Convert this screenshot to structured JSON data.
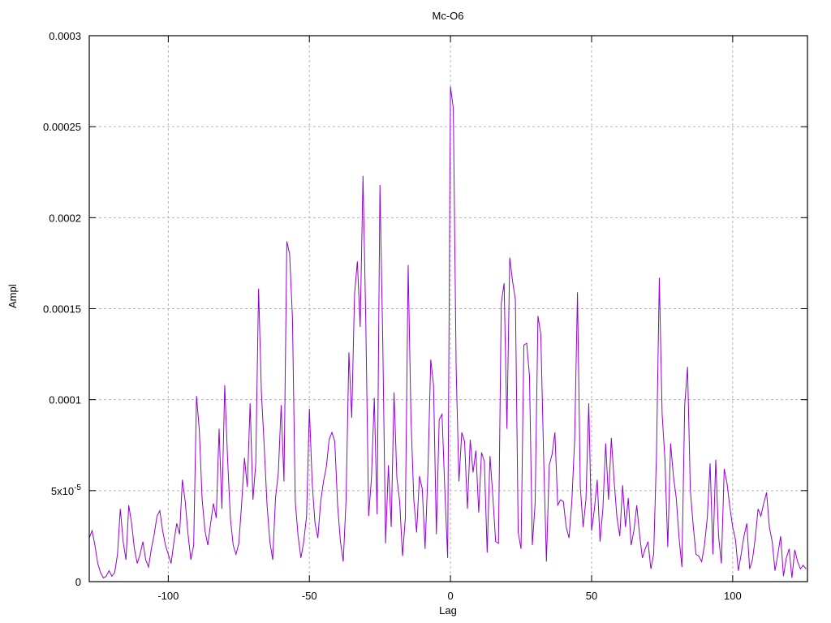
{
  "title": "Mc-O6",
  "axes": {
    "x_label": "Lag",
    "y_label": "Ampl"
  },
  "colors": {
    "line": "#9400d3",
    "border": "#000000",
    "grid": "#b4b4b4",
    "background": "#ffffff"
  },
  "chart_data": {
    "type": "line",
    "title": "Mc-O6",
    "xlabel": "Lag",
    "ylabel": "Ampl",
    "legend": "none",
    "grid": true,
    "xlim": [
      -128,
      126.5
    ],
    "ylim": [
      0,
      0.0003
    ],
    "x_ticks": [
      {
        "value": -100,
        "label": "-100"
      },
      {
        "value": -50,
        "label": "-50"
      },
      {
        "value": 0,
        "label": "0"
      },
      {
        "value": 50,
        "label": "50"
      },
      {
        "value": 100,
        "label": "100"
      }
    ],
    "y_ticks": [
      {
        "value": 0,
        "label": "0"
      },
      {
        "value": 5e-05,
        "label": "5x10^-5"
      },
      {
        "value": 0.0001,
        "label": "0.0001"
      },
      {
        "value": 0.00015,
        "label": "0.00015"
      },
      {
        "value": 0.0002,
        "label": "0.0002"
      },
      {
        "value": 0.00025,
        "label": "0.00025"
      },
      {
        "value": 0.0003,
        "label": "0.0003"
      }
    ],
    "series_name": "Ampl",
    "x_start": -128,
    "x_step": 1,
    "value_scale": 1e-05,
    "values": [
      2.4,
      2.8,
      2.0,
      1.0,
      0.5,
      0.2,
      0.3,
      0.6,
      0.3,
      0.5,
      1.5,
      4.0,
      2.2,
      1.2,
      4.2,
      3.2,
      1.8,
      1.0,
      1.5,
      2.2,
      1.2,
      0.8,
      1.8,
      2.6,
      3.6,
      3.9,
      2.8,
      2.0,
      1.5,
      1.0,
      2.2,
      3.2,
      2.6,
      5.6,
      4.4,
      2.6,
      1.2,
      2.0,
      10.2,
      8.3,
      4.5,
      2.8,
      2.0,
      3.2,
      4.3,
      3.5,
      8.4,
      4.0,
      10.8,
      6.8,
      3.5,
      2.0,
      1.5,
      2.1,
      4.3,
      6.8,
      5.2,
      9.8,
      4.5,
      6.5,
      16.1,
      10.4,
      7.4,
      4.2,
      2.2,
      1.2,
      4.6,
      6.0,
      9.7,
      5.5,
      18.7,
      18.0,
      14.5,
      4.4,
      2.5,
      1.3,
      2.2,
      3.6,
      9.5,
      5.4,
      3.2,
      2.4,
      4.4,
      5.5,
      6.3,
      7.8,
      8.2,
      7.7,
      4.2,
      2.2,
      1.1,
      4.5,
      12.6,
      9.0,
      15.8,
      17.6,
      14.0,
      22.3,
      14.2,
      3.6,
      5.7,
      10.1,
      3.7,
      21.8,
      13.2,
      2.1,
      6.4,
      3.0,
      10.4,
      5.7,
      4.4,
      1.4,
      3.5,
      17.4,
      9.0,
      4.5,
      2.7,
      5.8,
      5.1,
      1.8,
      6.0,
      12.2,
      10.8,
      2.6,
      8.9,
      9.2,
      5.0,
      1.3,
      27.2,
      26.0,
      11.8,
      5.5,
      8.2,
      7.7,
      4.0,
      7.8,
      6.0,
      7.2,
      3.8,
      7.1,
      6.6,
      1.6,
      6.9,
      4.7,
      2.2,
      2.1,
      15.3,
      16.4,
      8.4,
      17.8,
      16.5,
      15.5,
      2.7,
      1.8,
      13.0,
      13.1,
      11.3,
      2.0,
      4.3,
      14.6,
      13.6,
      6.9,
      1.1,
      6.4,
      7.0,
      8.2,
      4.2,
      4.5,
      4.4,
      3.0,
      2.4,
      4.4,
      7.8,
      15.9,
      5.2,
      3.0,
      4.5,
      9.8,
      2.8,
      4.0,
      5.6,
      2.2,
      4.0,
      7.6,
      4.5,
      7.9,
      5.5,
      3.5,
      2.5,
      5.3,
      3.0,
      4.6,
      2.0,
      2.8,
      4.2,
      2.6,
      1.3,
      1.8,
      2.2,
      0.7,
      1.5,
      7.0,
      16.7,
      9.2,
      6.7,
      1.9,
      7.6,
      5.8,
      4.6,
      2.4,
      0.8,
      9.7,
      11.8,
      5.0,
      3.1,
      1.5,
      1.4,
      1.1,
      2.0,
      3.5,
      6.5,
      1.5,
      6.7,
      2.5,
      1.0,
      6.2,
      5.4,
      4.1,
      3.0,
      2.3,
      0.6,
      1.5,
      2.5,
      3.2,
      0.7,
      1.2,
      2.4,
      4.0,
      3.6,
      4.3,
      4.9,
      3.0,
      2.2,
      0.6,
      1.5,
      2.5,
      0.3,
      1.3,
      1.8,
      0.2,
      1.75,
      1.1,
      0.7,
      0.9,
      0.7
    ]
  }
}
